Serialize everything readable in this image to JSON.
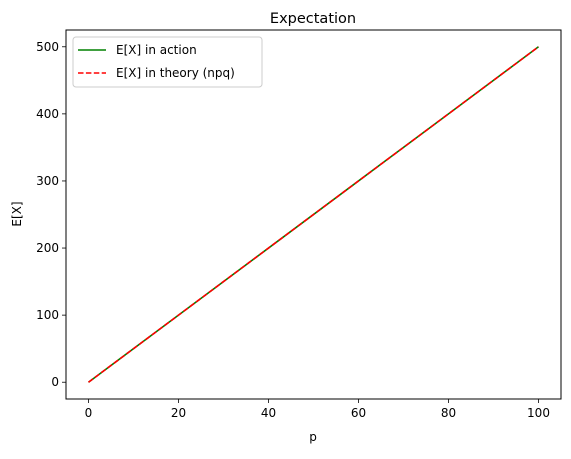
{
  "chart_data": {
    "type": "line",
    "title": "Expectation",
    "xlabel": "p",
    "ylabel": "E[X]",
    "xlim": [
      -5,
      105
    ],
    "ylim": [
      -25,
      525
    ],
    "xticks": [
      0,
      20,
      40,
      60,
      80,
      100
    ],
    "yticks": [
      0,
      100,
      200,
      300,
      400,
      500
    ],
    "grid": false,
    "legend_position": "upper-left",
    "series": [
      {
        "name": "E[X] in action",
        "color": "#008000",
        "style": "solid",
        "x": [
          0,
          20,
          40,
          60,
          80,
          100
        ],
        "y": [
          0,
          100,
          200,
          300,
          400,
          500
        ]
      },
      {
        "name": "E[X] in theory (npq)",
        "color": "#ff0000",
        "style": "dashed",
        "x": [
          0,
          20,
          40,
          60,
          80,
          100
        ],
        "y": [
          0,
          100,
          200,
          300,
          400,
          500
        ]
      }
    ]
  }
}
